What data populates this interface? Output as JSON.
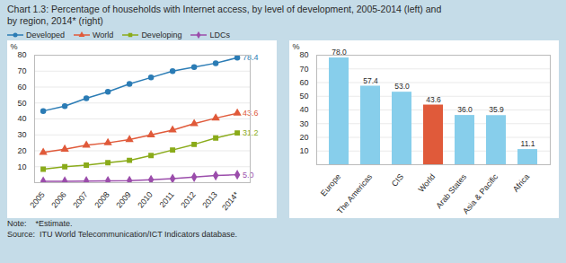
{
  "title": [
    "Chart 1.3: Percentage of households with Internet access, by level of development, 2005-2014 (left) and",
    "by region, 2014* (right)"
  ],
  "annotations": [
    "Note:    *Estimate.",
    "Source:  ITU World Telecommunication/ICT Indicators database."
  ],
  "chart_data": [
    {
      "type": "line",
      "x": [
        2005,
        2006,
        2007,
        2008,
        2009,
        2010,
        2011,
        2012,
        2013,
        2014
      ],
      "xlim": [
        2004.6,
        2014.6
      ],
      "xticks": [
        2005,
        2006,
        2007,
        2008,
        2009,
        2010,
        2011,
        2012,
        2013,
        {
          "value": 2014,
          "label": "2014*"
        }
      ],
      "ylim": [
        0,
        80
      ],
      "yticks": [
        10,
        20,
        30,
        40,
        50,
        60,
        70,
        80
      ],
      "ylabel": "%",
      "grid": true,
      "legend": "top",
      "series": [
        {
          "name": "Developed",
          "color": "#2b7cb5",
          "marker": "circle",
          "values": [
            45.0,
            48.0,
            53.0,
            57.0,
            62.0,
            66.0,
            70.0,
            72.5,
            75.0,
            78.4
          ]
        },
        {
          "name": "World",
          "color": "#e05a3a",
          "marker": "triangle",
          "values": [
            19.0,
            21.0,
            23.5,
            25.0,
            27.0,
            30.0,
            33.0,
            37.0,
            40.5,
            43.6
          ]
        },
        {
          "name": "Developing",
          "color": "#8aab1a",
          "marker": "square",
          "values": [
            8.5,
            10.0,
            11.0,
            12.5,
            14.0,
            17.0,
            20.5,
            24.0,
            28.0,
            31.2
          ]
        },
        {
          "name": "LDCs",
          "color": "#9b4dab",
          "marker": "diamond",
          "values": [
            0.8,
            0.9,
            1.0,
            1.1,
            1.2,
            1.8,
            2.5,
            3.5,
            4.5,
            5.0
          ]
        }
      ],
      "annotations": [
        {
          "x": 2014,
          "y": 78.4,
          "text": "78.4",
          "color": "#2b7cb5"
        },
        {
          "x": 2014,
          "y": 43.6,
          "text": "43.6",
          "color": "#e05a3a"
        },
        {
          "x": 2014,
          "y": 31.2,
          "text": "31.2",
          "color": "#8aab1a"
        },
        {
          "x": 2014,
          "y": 5.0,
          "text": "5.0",
          "color": "#9b4dab"
        }
      ]
    },
    {
      "type": "bar",
      "categories": [
        "Europe",
        "The Americas",
        "CIS",
        "World",
        "Arab States",
        "Asia & Pacific",
        "Africa"
      ],
      "values": [
        78.0,
        57.4,
        53.0,
        43.6,
        36.0,
        35.9,
        11.1
      ],
      "value_labels": [
        "78.0",
        "57.4",
        "53.0",
        "43.6",
        "36.0",
        "35.9",
        "11.1"
      ],
      "colors": [
        "#87ceeb",
        "#87ceeb",
        "#87ceeb",
        "#e05a3a",
        "#87ceeb",
        "#87ceeb",
        "#87ceeb"
      ],
      "ylim": [
        0,
        80
      ],
      "yticks": [
        10,
        20,
        30,
        40,
        50,
        60,
        70,
        80
      ],
      "ylabel": "%",
      "grid": true,
      "data_labels": true
    }
  ]
}
